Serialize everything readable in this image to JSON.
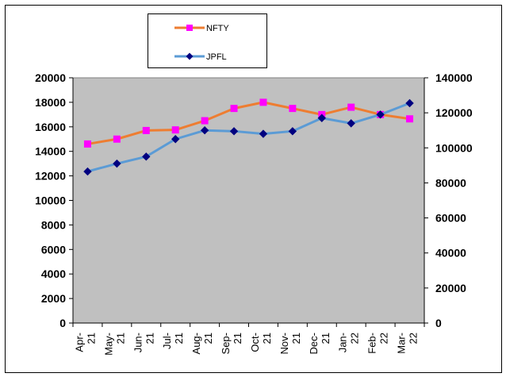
{
  "chart_data": {
    "type": "line",
    "categories": [
      "Apr-21",
      "May-21",
      "Jun-21",
      "Jul-21",
      "Aug-21",
      "Sep-21",
      "Oct-21",
      "Nov-21",
      "Dec-21",
      "Jan-22",
      "Feb-22",
      "Mar-22"
    ],
    "category_lines": [
      [
        "Apr-",
        "21"
      ],
      [
        "May-",
        "21"
      ],
      [
        "Jun-",
        "21"
      ],
      [
        "Jul-",
        "21"
      ],
      [
        "Aug-",
        "21"
      ],
      [
        "Sep-",
        "21"
      ],
      [
        "Oct-",
        "21"
      ],
      [
        "Nov-",
        "21"
      ],
      [
        "Dec-",
        "21"
      ],
      [
        "Jan-",
        "22"
      ],
      [
        "Feb-",
        "22"
      ],
      [
        "Mar-",
        "22"
      ]
    ],
    "series": [
      {
        "name": "NFTY",
        "axis": "left",
        "color": "#ee7d31",
        "marker_color": "#ff00ff",
        "marker": "square",
        "values": [
          14600,
          15000,
          15700,
          15750,
          16500,
          17500,
          18000,
          17500,
          17000,
          17600,
          17000,
          16650
        ]
      },
      {
        "name": "JPFL",
        "axis": "right",
        "color": "#5b9bd5",
        "marker_color": "#000080",
        "marker": "diamond",
        "values": [
          86500,
          91000,
          95000,
          105000,
          110000,
          109500,
          108000,
          109500,
          117000,
          114000,
          119000,
          125500
        ]
      }
    ],
    "y_left": {
      "min": 0,
      "max": 20000,
      "ticks": [
        "0",
        "2000",
        "4000",
        "6000",
        "8000",
        "10000",
        "12000",
        "14000",
        "16000",
        "18000",
        "20000"
      ]
    },
    "y_right": {
      "min": 0,
      "max": 140000,
      "ticks": [
        "0",
        "20000",
        "40000",
        "60000",
        "80000",
        "100000",
        "120000",
        "140000"
      ]
    },
    "legend_position": "top-center",
    "plot_background": "#c0c0c0",
    "grid": false
  }
}
